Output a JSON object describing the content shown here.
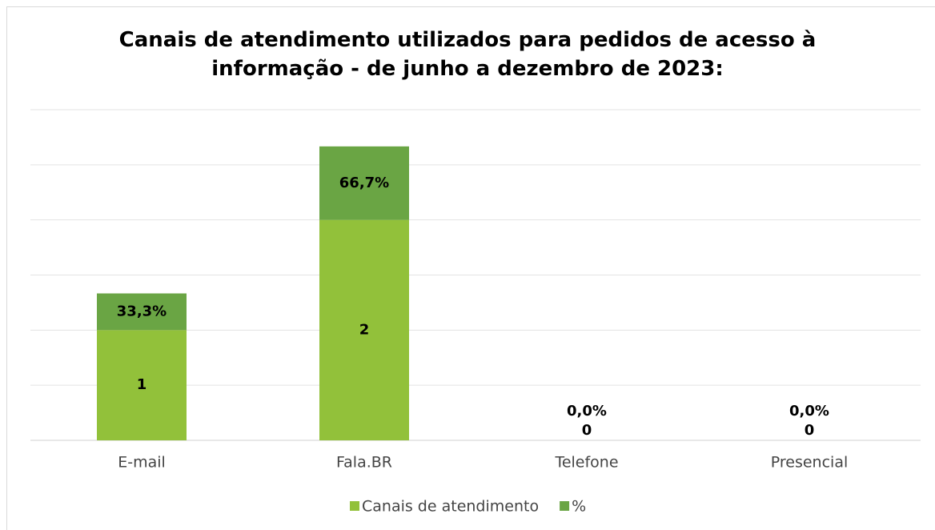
{
  "chart_data": {
    "type": "stacked_bar",
    "title": "Canais de atendimento utilizados para pedidos de acesso à informação - de junho a dezembro de 2023:",
    "categories": [
      "E-mail",
      "Fala.BR",
      "Telefone",
      "Presencial"
    ],
    "series": [
      {
        "name": "Canais de atendimento",
        "color": "#92c13a",
        "values": [
          1,
          2,
          0,
          0
        ]
      },
      {
        "name": "%",
        "color": "#6aa544",
        "values": [
          0.333,
          0.667,
          0,
          0
        ],
        "value_labels": [
          "33,3%",
          "66,7%",
          "0,0%",
          "0,0%"
        ]
      }
    ],
    "ylim": [
      0,
      3
    ],
    "yticks": [
      0,
      0.5,
      1,
      1.5,
      2,
      2.5,
      3
    ],
    "grid": true,
    "legend": "bottom"
  }
}
